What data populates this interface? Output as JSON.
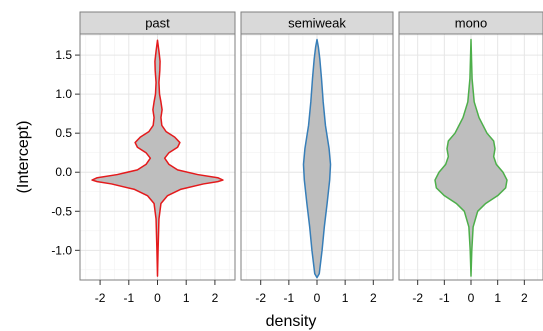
{
  "chart_data": {
    "type": "violin",
    "xlabel": "density",
    "ylabel": "(Intercept)",
    "ylim": [
      -1.38,
      1.77
    ],
    "xlim": [
      -2.7,
      2.7
    ],
    "y_ticks": [
      -1.0,
      -0.5,
      0.0,
      0.5,
      1.0,
      1.5
    ],
    "y_tick_labels": [
      "-1.0",
      "-0.5",
      "0.0",
      "0.5",
      "1.0",
      "1.5"
    ],
    "x_ticks": [
      -2,
      -1,
      0,
      1,
      2
    ],
    "x_tick_labels": [
      "-2",
      "-1",
      "0",
      "1",
      "2"
    ],
    "grid": true,
    "fill_color": "#bebebe",
    "panels": [
      {
        "name": "past",
        "color": "#e41a1c",
        "profile": [
          [
            -1.33,
            0.0
          ],
          [
            -1.0,
            0.02
          ],
          [
            -0.6,
            0.05
          ],
          [
            -0.4,
            0.12
          ],
          [
            -0.3,
            0.35
          ],
          [
            -0.22,
            0.8
          ],
          [
            -0.15,
            1.6
          ],
          [
            -0.12,
            2.1
          ],
          [
            -0.1,
            2.28
          ],
          [
            -0.07,
            2.1
          ],
          [
            -0.03,
            1.4
          ],
          [
            0.03,
            0.7
          ],
          [
            0.1,
            0.4
          ],
          [
            0.18,
            0.25
          ],
          [
            0.25,
            0.4
          ],
          [
            0.32,
            0.7
          ],
          [
            0.38,
            0.78
          ],
          [
            0.45,
            0.6
          ],
          [
            0.52,
            0.3
          ],
          [
            0.6,
            0.15
          ],
          [
            0.7,
            0.12
          ],
          [
            0.8,
            0.16
          ],
          [
            0.9,
            0.12
          ],
          [
            1.0,
            0.07
          ],
          [
            1.15,
            0.05
          ],
          [
            1.3,
            0.08
          ],
          [
            1.42,
            0.09
          ],
          [
            1.55,
            0.05
          ],
          [
            1.69,
            0.0
          ]
        ]
      },
      {
        "name": "semiweak",
        "color": "#377eb8",
        "profile": [
          [
            -1.35,
            0.0
          ],
          [
            -1.3,
            0.08
          ],
          [
            -1.0,
            0.18
          ],
          [
            -0.7,
            0.26
          ],
          [
            -0.4,
            0.36
          ],
          [
            -0.1,
            0.45
          ],
          [
            0.1,
            0.48
          ],
          [
            0.3,
            0.43
          ],
          [
            0.6,
            0.3
          ],
          [
            0.9,
            0.22
          ],
          [
            1.2,
            0.16
          ],
          [
            1.45,
            0.1
          ],
          [
            1.6,
            0.05
          ],
          [
            1.7,
            0.0
          ]
        ]
      },
      {
        "name": "mono",
        "color": "#4daf4a",
        "profile": [
          [
            -1.33,
            0.0
          ],
          [
            -1.0,
            0.03
          ],
          [
            -0.7,
            0.08
          ],
          [
            -0.5,
            0.25
          ],
          [
            -0.4,
            0.55
          ],
          [
            -0.3,
            1.0
          ],
          [
            -0.2,
            1.3
          ],
          [
            -0.1,
            1.35
          ],
          [
            0.0,
            1.2
          ],
          [
            0.1,
            0.95
          ],
          [
            0.2,
            0.85
          ],
          [
            0.3,
            0.9
          ],
          [
            0.4,
            0.85
          ],
          [
            0.5,
            0.6
          ],
          [
            0.7,
            0.3
          ],
          [
            0.9,
            0.12
          ],
          [
            1.2,
            0.04
          ],
          [
            1.45,
            0.02
          ],
          [
            1.7,
            0.0
          ]
        ]
      }
    ]
  }
}
